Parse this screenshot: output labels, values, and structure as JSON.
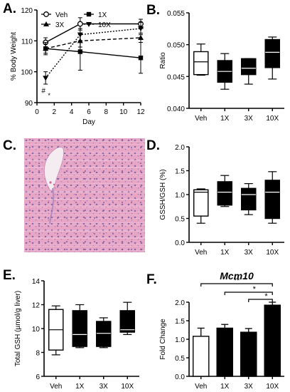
{
  "panels": {
    "A": {
      "label": "A.",
      "chart_data": {
        "type": "line",
        "x": [
          1,
          5,
          12
        ],
        "xlim": [
          0,
          12
        ],
        "xticks": [
          0,
          2,
          4,
          6,
          8,
          10,
          12
        ],
        "ylim": [
          90,
          120
        ],
        "yticks": [
          90,
          100,
          110,
          120
        ],
        "xlabel": "Day",
        "ylabel": "% Body Weight",
        "legend_position": "top-left",
        "annotation": "*",
        "significance_marks": [
          "#",
          "*"
        ],
        "series": [
          {
            "name": "Veh",
            "marker": "open-circle",
            "line": "solid",
            "values": [
              109.5,
              115.5,
              115.5
            ],
            "err": [
              1.5,
              2,
              1.5
            ]
          },
          {
            "name": "1X",
            "marker": "filled-square",
            "line": "solid",
            "values": [
              107.5,
              106.5,
              104.5
            ],
            "err": [
              2,
              6,
              5
            ]
          },
          {
            "name": "3X",
            "marker": "filled-up-triangle",
            "line": "dashed",
            "values": [
              107.5,
              110,
              111
            ],
            "err": [
              1.5,
              2,
              1.5
            ]
          },
          {
            "name": "10X",
            "marker": "filled-down-triangle",
            "line": "dotted",
            "values": [
              98,
              112,
              114
            ],
            "err": [
              2,
              2,
              2
            ]
          }
        ]
      }
    },
    "B": {
      "label": "B.",
      "chart_data": {
        "type": "boxplot",
        "categories": [
          "Veh",
          "1X",
          "3X",
          "10X"
        ],
        "ylabel": "Ratio",
        "ylim": [
          0.04,
          0.055
        ],
        "yticks": [
          "0.040",
          "0.045",
          "0.050",
          "0.055"
        ],
        "box_fill": [
          "#ffffff",
          "#000000",
          "#000000",
          "#000000"
        ],
        "boxes": [
          {
            "min": 0.0452,
            "q1": 0.0453,
            "median": 0.0473,
            "q3": 0.0489,
            "max": 0.0501
          },
          {
            "min": 0.043,
            "q1": 0.0441,
            "median": 0.0458,
            "q3": 0.0475,
            "max": 0.0486
          },
          {
            "min": 0.0438,
            "q1": 0.0453,
            "median": 0.0463,
            "q3": 0.0478,
            "max": 0.0478
          },
          {
            "min": 0.0446,
            "q1": 0.0464,
            "median": 0.0488,
            "q3": 0.0508,
            "max": 0.0512
          }
        ]
      }
    },
    "C": {
      "label": "C.",
      "image": "liver-histology-micrograph",
      "colors": {
        "tissue": "#e9a9c8",
        "nuclei": "#8a6aa8",
        "vessel": "#f4ecf0"
      }
    },
    "D": {
      "label": "D.",
      "chart_data": {
        "type": "boxplot",
        "categories": [
          "Veh",
          "1X",
          "3X",
          "10X"
        ],
        "ylabel": "GSSH/GSH (%)",
        "ylim": [
          0,
          2
        ],
        "yticks": [
          "0.0",
          "0.5",
          "1.0",
          "1.5",
          "2.0"
        ],
        "box_fill": [
          "#ffffff",
          "#000000",
          "#000000",
          "#000000"
        ],
        "boxes": [
          {
            "min": 0.4,
            "q1": 0.55,
            "median": 1.05,
            "q3": 1.1,
            "max": 1.12
          },
          {
            "min": 0.75,
            "q1": 0.78,
            "median": 1.05,
            "q3": 1.27,
            "max": 1.4
          },
          {
            "min": 0.58,
            "q1": 0.68,
            "median": 1.0,
            "q3": 1.13,
            "max": 1.23
          },
          {
            "min": 0.4,
            "q1": 0.5,
            "median": 1.05,
            "q3": 1.3,
            "max": 1.48
          }
        ]
      }
    },
    "E": {
      "label": "E.",
      "chart_data": {
        "type": "boxplot",
        "categories": [
          "Veh",
          "1X",
          "3X",
          "10X"
        ],
        "ylabel": "Total GSH (µmol/g liver)",
        "ylim": [
          6,
          14
        ],
        "yticks": [
          "6",
          "8",
          "10",
          "12",
          "14"
        ],
        "box_fill": [
          "#ffffff",
          "#000000",
          "#000000",
          "#000000"
        ],
        "boxes": [
          {
            "min": 7.8,
            "q1": 8.2,
            "median": 9.9,
            "q3": 11.6,
            "max": 11.9
          },
          {
            "min": 8.4,
            "q1": 8.5,
            "median": 9.5,
            "q3": 11.5,
            "max": 12.0
          },
          {
            "min": 8.4,
            "q1": 8.5,
            "median": 9.6,
            "q3": 10.6,
            "max": 10.9
          },
          {
            "min": 9.5,
            "q1": 9.7,
            "median": 9.9,
            "q3": 11.5,
            "max": 12.2
          }
        ]
      }
    },
    "F": {
      "label": "F.",
      "chart_data": {
        "type": "bar",
        "title": "Mcm10",
        "categories": [
          "Veh",
          "1X",
          "3X",
          "10X"
        ],
        "values": [
          1.08,
          1.3,
          1.19,
          1.92
        ],
        "err": [
          0.22,
          0.1,
          0.1,
          0.08
        ],
        "bar_fill": [
          "#ffffff",
          "#000000",
          "#000000",
          "#000000"
        ],
        "ylabel": "Fold Change",
        "ylim": [
          0,
          2
        ],
        "yticks": [
          "0.0",
          "0.5",
          "1.0",
          "1.5",
          "2.0"
        ],
        "significance": [
          {
            "from": "Veh",
            "to": "10X",
            "label": "**"
          },
          {
            "from": "1X",
            "to": "10X",
            "label": "*"
          },
          {
            "from": "3X",
            "to": "10X",
            "label": "*"
          }
        ]
      }
    }
  }
}
